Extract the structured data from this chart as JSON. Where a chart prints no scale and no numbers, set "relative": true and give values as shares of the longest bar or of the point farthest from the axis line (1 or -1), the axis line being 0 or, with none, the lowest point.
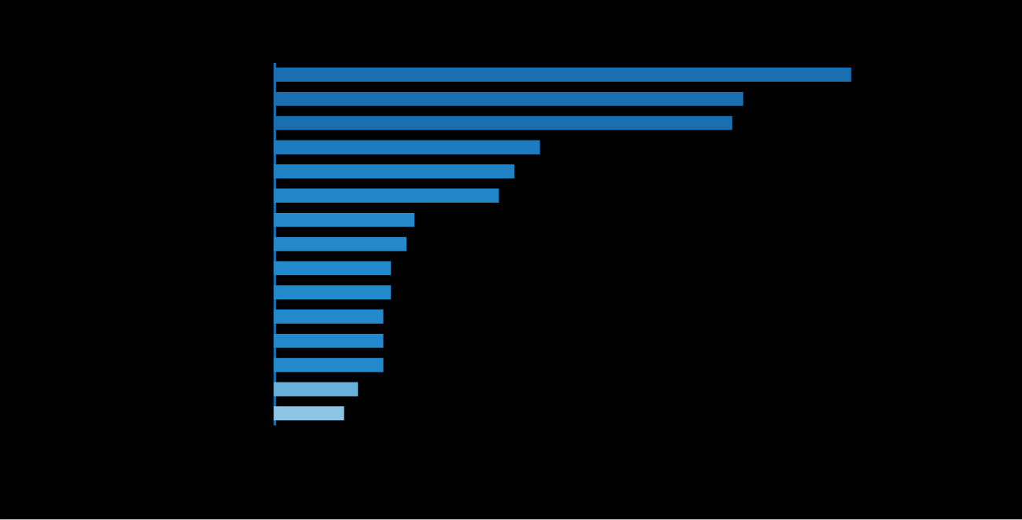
{
  "chart_data": {
    "type": "bar",
    "orientation": "horizontal",
    "relative": true,
    "categories": [
      null,
      null,
      null,
      null,
      null,
      null,
      null,
      null,
      null,
      null,
      null,
      null,
      null,
      null,
      null
    ],
    "values": [
      1,
      0.813,
      0.794,
      0.461,
      0.417,
      0.39,
      0.244,
      0.23,
      0.203,
      0.203,
      0.19,
      0.19,
      0.19,
      0.146,
      0.122
    ],
    "colors": [
      "#1a6fb0",
      "#1a6fb0",
      "#1a6fb0",
      "#1d7cc0",
      "#1f82c4",
      "#2186c8",
      "#2389ca",
      "#2389ca",
      "#2389ca",
      "#2389ca",
      "#2389ca",
      "#2389ca",
      "#2389ca",
      "#6ab0dc",
      "#8cc4e6"
    ]
  }
}
